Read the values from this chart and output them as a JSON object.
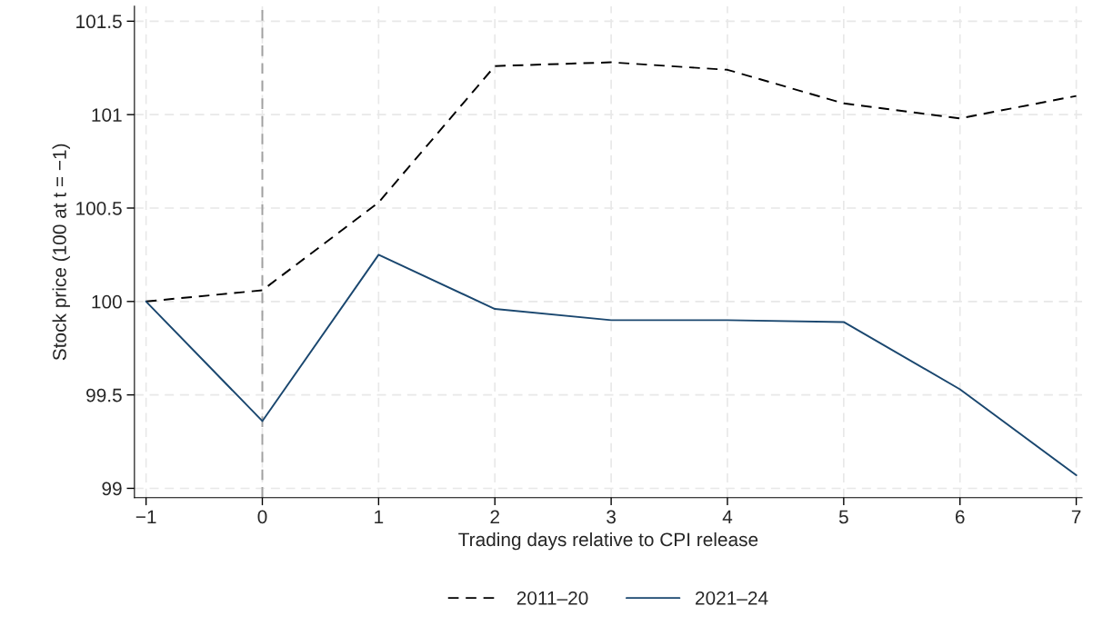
{
  "chart_data": {
    "type": "line",
    "xlabel": "Trading days relative to CPI release",
    "ylabel": "Stock price (100 at t = −1)",
    "x": [
      -1,
      0,
      1,
      2,
      3,
      4,
      5,
      6,
      7
    ],
    "series": [
      {
        "name": "2011–20",
        "color": "#000000",
        "line_style": "dashed",
        "values": [
          100.0,
          100.06,
          100.53,
          101.26,
          101.28,
          101.24,
          101.06,
          100.98,
          101.1
        ]
      },
      {
        "name": "2021–24",
        "color": "#1a476f",
        "line_style": "solid",
        "values": [
          100.0,
          99.36,
          100.25,
          99.96,
          99.9,
          99.9,
          99.89,
          99.53,
          99.07
        ]
      }
    ],
    "xlim": [
      -1.1,
      7.05
    ],
    "xticks": [
      {
        "value": -1,
        "label": "−1"
      },
      0,
      1,
      2,
      3,
      4,
      5,
      6,
      7
    ],
    "ylim": [
      98.95,
      101.58
    ],
    "yticks": [
      99,
      99.5,
      100,
      100.5,
      101,
      101.5
    ],
    "ref_lines": [
      {
        "axis": "x",
        "value": 0,
        "color": "#a0a0a0",
        "line_style": "dashed"
      }
    ],
    "grid": true,
    "legend": "bottom",
    "marker": "none"
  }
}
